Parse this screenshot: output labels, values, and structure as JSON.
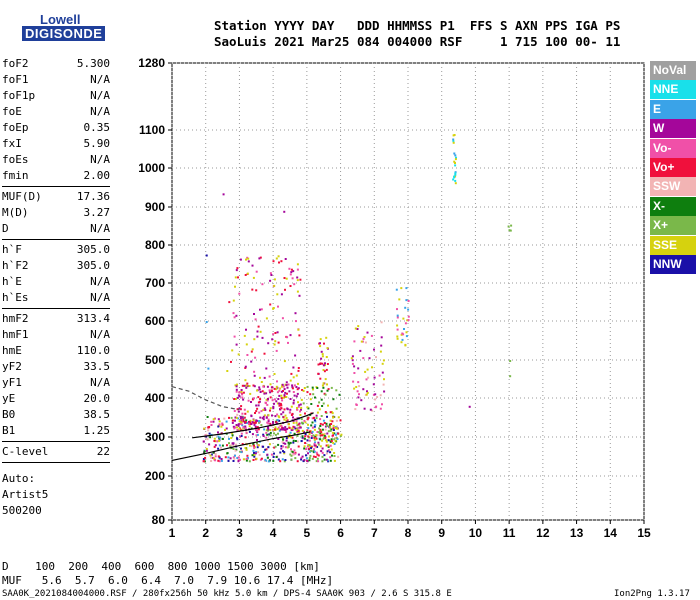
{
  "logo": {
    "line1": "Lowell",
    "line2": "DIGISONDE"
  },
  "header": {
    "labels_line": "Station YYYY DAY   DDD HHMMSS P1  FFS S AXN PPS IGA PS",
    "values_line": "SaoLuis 2021 Mar25 084 004000 RSF     1 715 100 00- 11"
  },
  "params": [
    {
      "group": [
        {
          "name": "foF2",
          "value": "5.300"
        },
        {
          "name": "foF1",
          "value": "N/A"
        },
        {
          "name": "foF1p",
          "value": "N/A"
        },
        {
          "name": "foE",
          "value": "N/A"
        },
        {
          "name": "foEp",
          "value": "0.35"
        },
        {
          "name": "fxI",
          "value": "5.90"
        },
        {
          "name": "foEs",
          "value": "N/A"
        },
        {
          "name": "fmin",
          "value": "2.00"
        }
      ]
    },
    {
      "group": [
        {
          "name": "MUF(D)",
          "value": "17.36"
        },
        {
          "name": "M(D)",
          "value": "3.27"
        },
        {
          "name": "D",
          "value": "N/A"
        }
      ]
    },
    {
      "group": [
        {
          "name": "h`F",
          "value": "305.0"
        },
        {
          "name": "h`F2",
          "value": "305.0"
        },
        {
          "name": "h`E",
          "value": "N/A"
        },
        {
          "name": "h`Es",
          "value": "N/A"
        }
      ]
    },
    {
      "group": [
        {
          "name": "hmF2",
          "value": "313.4"
        },
        {
          "name": "hmF1",
          "value": "N/A"
        },
        {
          "name": "hmE",
          "value": "110.0"
        },
        {
          "name": "yF2",
          "value": "33.5"
        },
        {
          "name": "yF1",
          "value": "N/A"
        },
        {
          "name": "yE",
          "value": "20.0"
        },
        {
          "name": "B0",
          "value": "38.5"
        },
        {
          "name": "B1",
          "value": "1.25"
        }
      ]
    },
    {
      "group": [
        {
          "name": "C-level",
          "value": "22"
        }
      ]
    }
  ],
  "auto_lines": [
    "Auto:",
    "Artist5",
    "500200"
  ],
  "legend": [
    {
      "label": "NoVal",
      "color": "#a0a0a0"
    },
    {
      "label": "NNE",
      "color": "#19e0ea"
    },
    {
      "label": "E",
      "color": "#3aa3e8"
    },
    {
      "label": "W",
      "color": "#a4069a"
    },
    {
      "label": "Vo-",
      "color": "#f050a8"
    },
    {
      "label": "Vo+",
      "color": "#f0103c"
    },
    {
      "label": "SSW",
      "color": "#f2b4b4"
    },
    {
      "label": "X-",
      "color": "#0e7e0e"
    },
    {
      "label": "X+",
      "color": "#7ab84a"
    },
    {
      "label": "SSE",
      "color": "#d6d20e"
    },
    {
      "label": "NNW",
      "color": "#1a10a8"
    }
  ],
  "bottom": {
    "d_line": "D    100  200  400  600  800 1000 1500 3000 [km]",
    "muf_line": "MUF   5.6  5.7  6.0  6.4  7.0  7.9 10.6 17.4 [MHz]"
  },
  "footer": {
    "left": "SAA0K_2021084004000.RSF / 280fx256h 50 kHz 5.0 km / DPS-4 SAA0K 903 / 2.6 S 315.8 E",
    "right": "Ion2Png 1.3.17"
  },
  "chart_data": {
    "type": "scatter",
    "title": "",
    "xlabel": "",
    "ylabel": "",
    "x_ticks": [
      1,
      2,
      3,
      4,
      5,
      6,
      7,
      8,
      9,
      10,
      11,
      12,
      13,
      14,
      15
    ],
    "y_ticks": [
      80,
      200,
      300,
      400,
      500,
      600,
      700,
      800,
      900,
      1000,
      1100,
      1280
    ],
    "xlim": [
      1,
      15
    ],
    "ylim": [
      80,
      1280
    ],
    "grid": true,
    "legend_position": "right",
    "clusters": [
      {
        "x_range": [
          1.9,
          5.9
        ],
        "y_range": [
          240,
          360
        ],
        "count": 520,
        "colors": [
          "#f050a8",
          "#f0103c",
          "#a4069a",
          "#d6d20e",
          "#0e7e0e",
          "#7ab84a",
          "#3aa3e8",
          "#f2b4b4",
          "#1a10a8"
        ]
      },
      {
        "x_range": [
          2.8,
          4.8
        ],
        "y_range": [
          320,
          440
        ],
        "count": 280,
        "colors": [
          "#a4069a",
          "#f050a8",
          "#a4069a",
          "#d6d20e",
          "#f0103c"
        ]
      },
      {
        "x_range": [
          2.6,
          4.8
        ],
        "y_range": [
          420,
          780
        ],
        "count": 140,
        "colors": [
          "#a4069a",
          "#f050a8",
          "#d6d20e",
          "#f0103c"
        ]
      },
      {
        "x_range": [
          4.8,
          6.0
        ],
        "y_range": [
          290,
          440
        ],
        "count": 120,
        "colors": [
          "#d6d20e",
          "#7ab84a",
          "#0e7e0e",
          "#f0103c"
        ]
      },
      {
        "x_range": [
          6.3,
          7.3
        ],
        "y_range": [
          370,
          600
        ],
        "count": 70,
        "colors": [
          "#f2b4b4",
          "#f050a8",
          "#d6d20e",
          "#a4069a"
        ]
      },
      {
        "x_range": [
          7.6,
          8.0
        ],
        "y_range": [
          540,
          690
        ],
        "count": 30,
        "colors": [
          "#d6d20e",
          "#3aa3e8",
          "#f050a8"
        ]
      },
      {
        "x_range": [
          9.3,
          9.4
        ],
        "y_range": [
          960,
          1090
        ],
        "count": 22,
        "colors": [
          "#19e0ea",
          "#3aa3e8",
          "#d6d20e"
        ]
      },
      {
        "x_range": [
          10.95,
          11.05
        ],
        "y_range": [
          840,
          865
        ],
        "count": 4,
        "colors": [
          "#7ab84a"
        ]
      },
      {
        "x_range": [
          5.3,
          5.6
        ],
        "y_range": [
          440,
          560
        ],
        "count": 30,
        "colors": [
          "#d6d20e",
          "#f0103c",
          "#a4069a"
        ]
      }
    ],
    "isolated_points": [
      {
        "x": 2.5,
        "y": 935,
        "color": "#a4069a"
      },
      {
        "x": 2.0,
        "y": 775,
        "color": "#1a10a8"
      },
      {
        "x": 4.3,
        "y": 890,
        "color": "#a4069a"
      },
      {
        "x": 9.8,
        "y": 380,
        "color": "#a4069a"
      },
      {
        "x": 11.0,
        "y": 460,
        "color": "#7ab84a"
      },
      {
        "x": 11.0,
        "y": 500,
        "color": "#7ab84a"
      },
      {
        "x": 2.0,
        "y": 600,
        "color": "#3aa3e8"
      },
      {
        "x": 2.05,
        "y": 480,
        "color": "#3aa3e8"
      }
    ],
    "traces": [
      {
        "name": "o-trace",
        "color": "#000000",
        "points": [
          [
            1.0,
            240
          ],
          [
            2.0,
            258
          ],
          [
            3.0,
            278
          ],
          [
            4.0,
            296
          ],
          [
            4.7,
            306
          ],
          [
            5.1,
            313
          ]
        ]
      },
      {
        "name": "x-trace",
        "color": "#000000",
        "points": [
          [
            1.6,
            298
          ],
          [
            2.5,
            308
          ],
          [
            3.5,
            322
          ],
          [
            4.5,
            340
          ],
          [
            5.0,
            355
          ],
          [
            5.2,
            362
          ]
        ]
      },
      {
        "name": "profile",
        "color": "#555555",
        "dashed": true,
        "points": [
          [
            1.0,
            430
          ],
          [
            1.5,
            418
          ],
          [
            2.0,
            395
          ],
          [
            2.5,
            378
          ],
          [
            3.0,
            370
          ]
        ]
      }
    ]
  }
}
